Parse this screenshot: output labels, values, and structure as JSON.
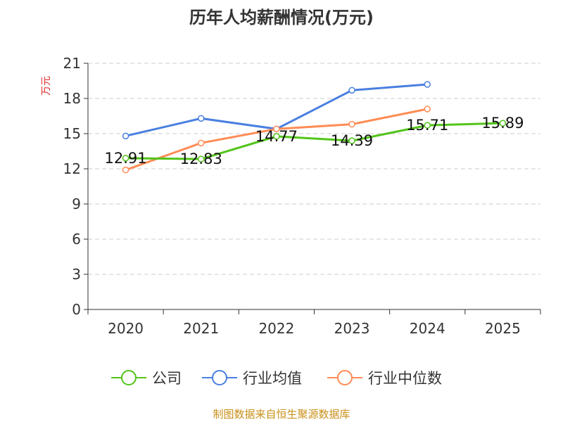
{
  "chart_data": {
    "type": "line",
    "title": "历年人均薪酬情况(万元)",
    "ylabel": "万元",
    "xlabel": "",
    "categories": [
      "2020",
      "2021",
      "2022",
      "2023",
      "2024",
      "2025"
    ],
    "ylim": [
      0,
      21
    ],
    "yticks": [
      0,
      3,
      6,
      9,
      12,
      15,
      18,
      21
    ],
    "grid": true,
    "legend_position": "bottom",
    "series": [
      {
        "name": "公司",
        "color": "#52c41a",
        "values": [
          12.91,
          12.83,
          14.77,
          14.39,
          15.71,
          15.89
        ],
        "labels": [
          "12.91",
          "12.83",
          "14.77",
          "14.39",
          "15.71",
          "15.89"
        ]
      },
      {
        "name": "行业均值",
        "color": "#4a7fe0",
        "values": [
          14.8,
          16.3,
          15.4,
          18.7,
          19.2,
          null
        ]
      },
      {
        "name": "行业中位数",
        "color": "#ff8c55",
        "values": [
          11.9,
          14.2,
          15.4,
          15.8,
          17.1,
          null
        ]
      }
    ],
    "source": "制图数据来自恒生聚源数据库"
  }
}
